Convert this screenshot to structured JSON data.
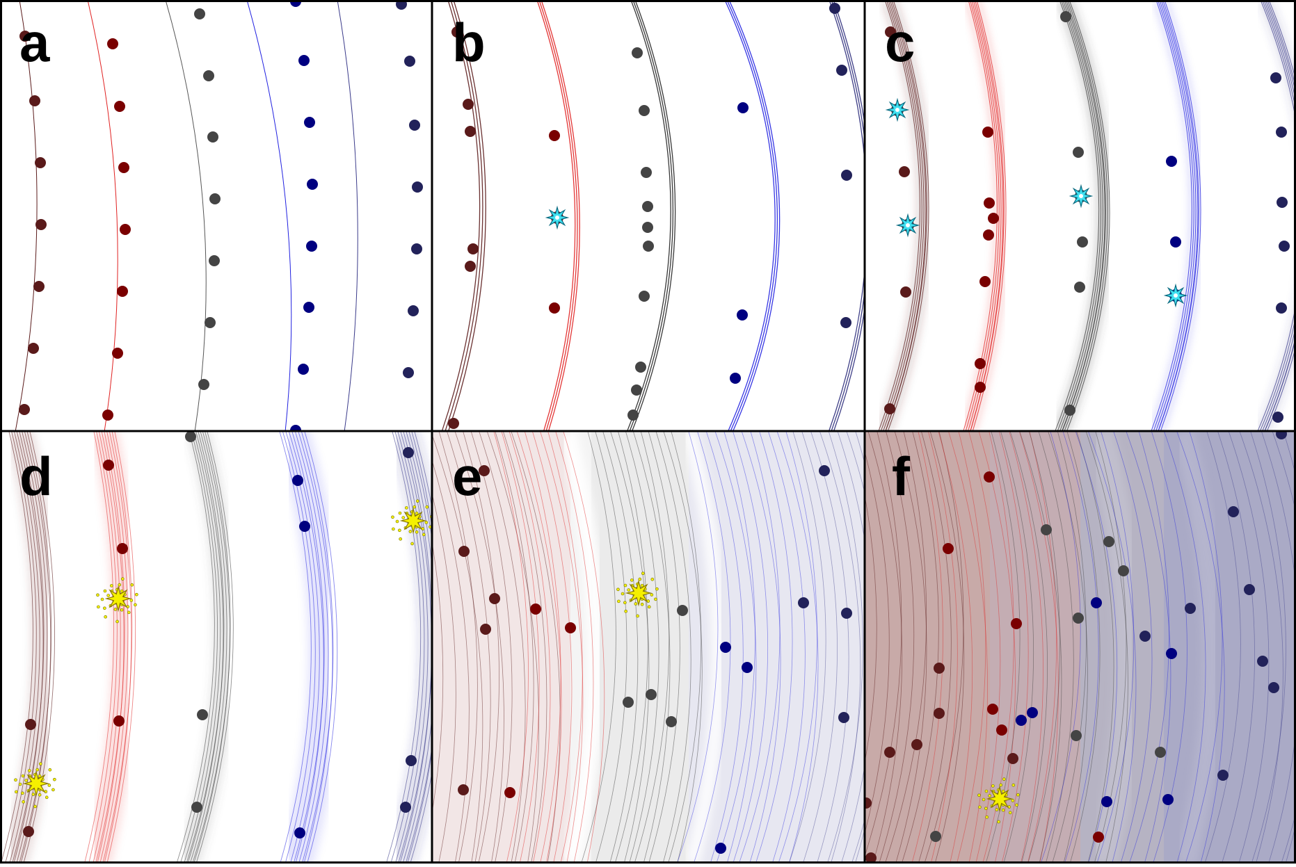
{
  "figure": {
    "panels": [
      {
        "id": "a",
        "label": "a"
      },
      {
        "id": "b",
        "label": "b"
      },
      {
        "id": "c",
        "label": "c"
      },
      {
        "id": "d",
        "label": "d"
      },
      {
        "id": "e",
        "label": "e"
      },
      {
        "id": "f",
        "label": "f"
      }
    ]
  },
  "colors": {
    "darkred": "#5a1a1a",
    "red": "#7a0000",
    "redline": "#e02020",
    "gray": "#444444",
    "navy": "#000080",
    "blueline": "#2020e0",
    "darknavy": "#22225a",
    "cyan": "#40e0f0",
    "yellow": "#f5f000",
    "frame": "#000000"
  }
}
